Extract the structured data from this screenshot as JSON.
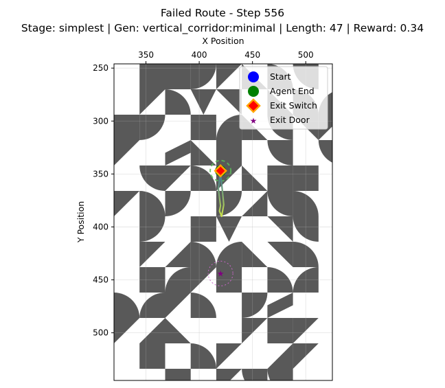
{
  "chart_data": {
    "type": "scatter",
    "title": "Failed Route - Step 556",
    "subtitle": "Stage: simplest | Gen: vertical_corridor:minimal | Length: 47 | Reward: 0.34",
    "xlabel": "X Position",
    "ylabel": "Y Position",
    "xlim": [
      320,
      525
    ],
    "ylim": [
      545,
      246
    ],
    "x_ticks": [
      350,
      400,
      450,
      500
    ],
    "y_ticks": [
      250,
      300,
      350,
      400,
      450,
      500
    ],
    "x_axis_position": "top",
    "y_axis_inverted": true,
    "grid": true,
    "legend_position": "top-right",
    "legend": [
      "Start",
      "Agent End",
      "Exit Switch",
      "Exit Door"
    ],
    "colors": {
      "wall": "#595959",
      "floor": "#ffffff",
      "start": "#0000ff",
      "agent_end": "#008000",
      "exit_switch_fill": "#ff0000",
      "exit_switch_edge": "#ffa500",
      "exit_door": "#800080",
      "path_start": "#2f6f9f",
      "path_end": "#c8df4a",
      "switch_radius": "#5cb85c",
      "door_radius": "#cc66cc"
    },
    "start": {
      "x": 420,
      "y": 347
    },
    "agent_end": {
      "x": 420,
      "y": 347
    },
    "exit_switch": {
      "x": 420,
      "y": 347
    },
    "exit_door": {
      "x": 420,
      "y": 444
    },
    "path": [
      {
        "x": 420,
        "y": 347
      },
      {
        "x": 419,
        "y": 356
      },
      {
        "x": 418,
        "y": 364
      },
      {
        "x": 419,
        "y": 372
      },
      {
        "x": 420,
        "y": 380
      },
      {
        "x": 419,
        "y": 385
      },
      {
        "x": 421,
        "y": 390
      },
      {
        "x": 423,
        "y": 379
      },
      {
        "x": 422,
        "y": 368
      },
      {
        "x": 421,
        "y": 359
      },
      {
        "x": 420,
        "y": 349
      }
    ],
    "tile_size": 24,
    "tile_origin": {
      "x": 320,
      "y": 246
    },
    "maze_tiles": [
      "FSSATLBEFTBWAJWFFTBZ",
      "FTBCYFLBWWFWFEFEBJWF",
      "SAFSWLEYTSSFJFWKTEFB",
      "TFZLSFEFEFBZFWFTFAAF",
      "FETBTLOOFFFBTFYBWJLF",
      "TBAFAJEBFFFBBFEFZFYF",
      "FAFSCFYEFFFWFFFBWSZF",
      "FTJBWLYBFFSFEFSCZATB",
      "FSWTSFBWFFFYFFLFAAYW",
      "BWTBFAZFFFBFFSFFJZBF",
      "TJLFFTSTFFFJKFFFFBAF",
      "FSFBTFJTFFFBYFFFBTTF",
      "FFSFTEEFFFAWSZLLKJFF"
    ]
  }
}
